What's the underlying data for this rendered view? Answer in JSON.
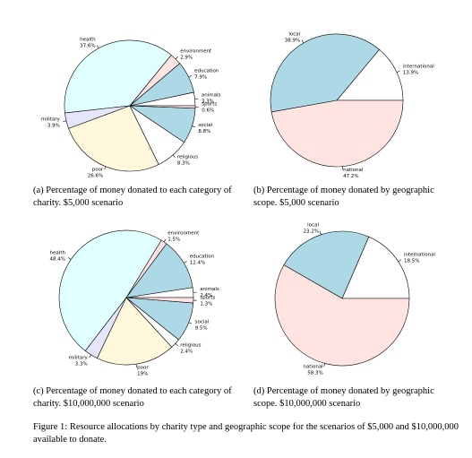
{
  "chart_data": [
    {
      "type": "pie",
      "caption": "(a) Percentage of money donated to each category of charity. $5,000 scenario",
      "categories": [
        "animals",
        "education",
        "environment",
        "health",
        "military",
        "poor",
        "religious",
        "social",
        "sports"
      ],
      "values": [
        3.3,
        7.9,
        2.9,
        37.6,
        3.9,
        26.6,
        8.3,
        8.8,
        0.6
      ],
      "value_labels": [
        "3.3%",
        "7.9%",
        "2.9%",
        "37.6%",
        "3.9%",
        "26.6%",
        "8.3%",
        "8.8%",
        "0.6%"
      ],
      "colors": [
        "#ffffff",
        "#add8e6",
        "#ffe4e1",
        "#e0ffff",
        "#e6e6fa",
        "#fff8dc",
        "#ffffff",
        "#add8e6",
        "#ffe4e1"
      ]
    },
    {
      "type": "pie",
      "caption": "(b) Percentage of money donated by geographic scope. $5,000 scenario",
      "categories": [
        "international",
        "local",
        "national"
      ],
      "values": [
        13.9,
        38.9,
        47.2
      ],
      "value_labels": [
        "13.9%",
        "38.9%",
        "47.2%"
      ],
      "colors": [
        "#ffffff",
        "#add8e6",
        "#ffe4e1"
      ]
    },
    {
      "type": "pie",
      "caption": "(c) Percentage of money donated to each category of charity. $10,000,000 scenario",
      "categories": [
        "animals",
        "education",
        "environment",
        "health",
        "military",
        "poor",
        "religious",
        "social",
        "sports"
      ],
      "values": [
        2.4,
        12.4,
        1.5,
        48.4,
        3.3,
        19,
        2.4,
        9.5,
        1.3
      ],
      "value_labels": [
        "2.4%",
        "12.4%",
        "1.5%",
        "48.4%",
        "3.3%",
        "19%",
        "2.4%",
        "9.5%",
        "1.3%"
      ],
      "colors": [
        "#ffffff",
        "#add8e6",
        "#ffe4e1",
        "#e0ffff",
        "#e6e6fa",
        "#fff8dc",
        "#ffffff",
        "#add8e6",
        "#ffe4e1"
      ]
    },
    {
      "type": "pie",
      "caption": "(d) Percentage of money donated by geographic scope. $10,000,000 scenario",
      "categories": [
        "international",
        "local",
        "national"
      ],
      "values": [
        18.5,
        23.2,
        58.3
      ],
      "value_labels": [
        "18.5%",
        "23.2%",
        "58.3%"
      ],
      "colors": [
        "#ffffff",
        "#add8e6",
        "#ffe4e1"
      ]
    }
  ],
  "figure_caption": "Figure 1: Resource allocations by charity type and geographic scope for the scenarios of $5,000 and $10,000,000 available to donate."
}
